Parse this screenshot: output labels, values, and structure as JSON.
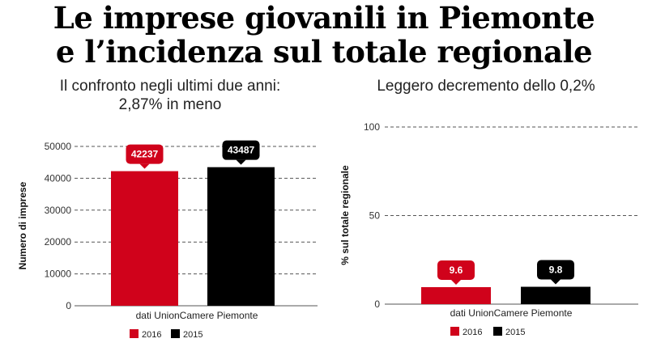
{
  "title_line1": "Le imprese giovanili in Piemonte",
  "title_line2": "e l’incidenza sul totale regionale",
  "colors": {
    "2016": "#d0021b",
    "2015": "#000000",
    "grid": "#555555",
    "axis": "#222222"
  },
  "chart_data": [
    {
      "type": "bar",
      "title_lines": [
        "Il confronto negli ultimi due anni:",
        "2,87% in meno"
      ],
      "ylabel": "Numero di imprese",
      "xlabel": "dati UnionCamere Piemonte",
      "ylim": [
        0,
        50000
      ],
      "yticks": [
        0,
        10000,
        20000,
        30000,
        40000,
        50000
      ],
      "grid": true,
      "legend_position": "bottom-left",
      "series": [
        {
          "name": "2016",
          "values": [
            42237
          ],
          "label": "42237"
        },
        {
          "name": "2015",
          "values": [
            43487
          ],
          "label": "43487"
        }
      ]
    },
    {
      "type": "bar",
      "title_lines": [
        "Leggero decremento dello 0,2%"
      ],
      "ylabel": "% sul totale regionale",
      "xlabel": "dati UnionCamere Piemonte",
      "ylim": [
        0,
        100
      ],
      "yticks": [
        0,
        50,
        100
      ],
      "grid": true,
      "legend_position": "bottom-left",
      "series": [
        {
          "name": "2016",
          "values": [
            9.6
          ],
          "label": "9.6"
        },
        {
          "name": "2015",
          "values": [
            9.8
          ],
          "label": "9.8"
        }
      ]
    }
  ]
}
